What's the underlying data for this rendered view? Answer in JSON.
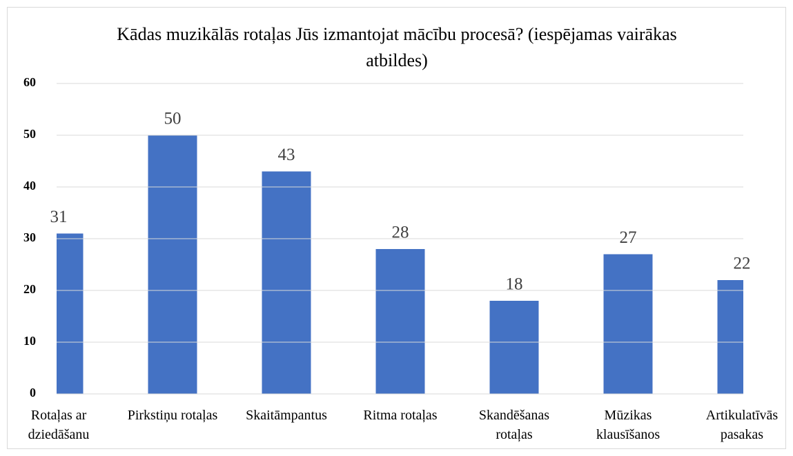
{
  "chart_data": {
    "type": "bar",
    "title": "Kādas muzikālās rotaļas Jūs izmantojat mācību procesā? (iespējamas vairākas atbildes)",
    "categories": [
      "Rotaļas ar dziedāšanu",
      "Pirkstiņu rotaļas",
      "Skaitāmpantus",
      "Ritma rotaļas",
      "Skandēšanas rotaļas",
      "Mūzikas klausīšanos",
      "Artikulatīvās pasakas"
    ],
    "values": [
      31,
      50,
      43,
      28,
      18,
      27,
      22
    ],
    "color": "#4472c4",
    "ylim": [
      0,
      60
    ],
    "yticks": [
      0,
      10,
      20,
      30,
      40,
      50,
      60
    ],
    "grid": true
  }
}
